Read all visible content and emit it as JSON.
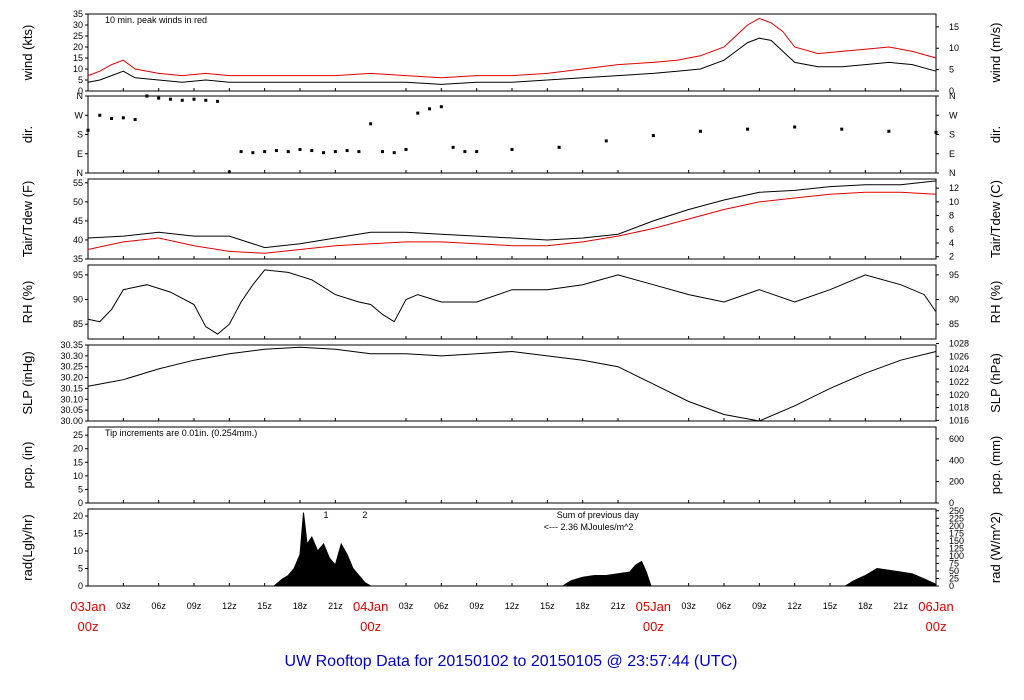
{
  "title": "UW Rooftop Data for 20150102  to  20150105 @ 23:57:44  (UTC)",
  "colors": {
    "red": "#e00000",
    "blue": "#0000cc",
    "purple": "#9900cc",
    "black": "#000000"
  },
  "x_axis": {
    "range_hours": [
      0,
      72
    ],
    "major": [
      {
        "hour": 0,
        "line1": "03Jan",
        "line2": "00z"
      },
      {
        "hour": 24,
        "line1": "04Jan",
        "line2": "00z"
      },
      {
        "hour": 48,
        "line1": "05Jan",
        "line2": "00z"
      },
      {
        "hour": 72,
        "line1": "06Jan",
        "line2": "00z"
      }
    ],
    "minor_hours": [
      3,
      6,
      9,
      12,
      15,
      18,
      21,
      27,
      30,
      33,
      36,
      39,
      42,
      45,
      51,
      54,
      57,
      60,
      63,
      66,
      69
    ],
    "minor_labels": [
      "03z",
      "06z",
      "09z",
      "12z",
      "15z",
      "18z",
      "21z",
      "03z",
      "06z",
      "09z",
      "12z",
      "15z",
      "18z",
      "21z",
      "03z",
      "06z",
      "09z",
      "12z",
      "15z",
      "18z",
      "21z"
    ]
  },
  "chart_data": [
    {
      "type": "line",
      "ylabel": "wind (kts)",
      "ylabel_right": "wind (m/s)",
      "ylim": [
        0,
        35
      ],
      "yticks": [
        0,
        5,
        10,
        15,
        20,
        25,
        30,
        35
      ],
      "right_ticks": [
        {
          "label": "0",
          "at": 0
        },
        {
          "label": "5",
          "at": 9.72
        },
        {
          "label": "10",
          "at": 19.44
        },
        {
          "label": "15",
          "at": 29.16
        }
      ],
      "annotation": "10 min. peak winds in red",
      "series": [
        {
          "color": "#000000",
          "x": [
            0,
            1,
            2,
            3,
            4,
            6,
            8,
            10,
            12,
            15,
            18,
            21,
            24,
            27,
            30,
            33,
            36,
            39,
            42,
            45,
            48,
            50,
            52,
            54,
            55,
            56,
            57,
            58,
            59,
            60,
            62,
            64,
            66,
            68,
            70,
            72
          ],
          "y": [
            4,
            5,
            7,
            9,
            6,
            5,
            4,
            5,
            4,
            4,
            4,
            4,
            4,
            4,
            3,
            4,
            4,
            5,
            6,
            7,
            8,
            9,
            10,
            14,
            18,
            22,
            24,
            23,
            18,
            13,
            11,
            11,
            12,
            13,
            12,
            9
          ]
        },
        {
          "color": "#e00000",
          "x": [
            0,
            1,
            2,
            3,
            4,
            6,
            8,
            10,
            12,
            15,
            18,
            21,
            24,
            27,
            30,
            33,
            36,
            39,
            42,
            45,
            48,
            50,
            52,
            54,
            55,
            56,
            57,
            58,
            59,
            60,
            62,
            64,
            66,
            68,
            70,
            72
          ],
          "y": [
            7,
            9,
            12,
            14,
            10,
            8,
            7,
            8,
            7,
            7,
            7,
            7,
            8,
            7,
            6,
            7,
            7,
            8,
            10,
            12,
            13,
            14,
            16,
            20,
            25,
            30,
            33,
            31,
            27,
            20,
            17,
            18,
            19,
            20,
            18,
            15
          ]
        }
      ]
    },
    {
      "type": "scatter",
      "ylabel": "dir.",
      "ylabel_right": "dir.",
      "ylim": [
        0,
        360
      ],
      "yticks": [
        0,
        90,
        180,
        270,
        360
      ],
      "ytick_labels": [
        "N",
        "E",
        "S",
        "W",
        "N"
      ],
      "series": [
        {
          "color": "#000000",
          "x": [
            0,
            1,
            2,
            3,
            4,
            5,
            6,
            7,
            8,
            9,
            10,
            11,
            12,
            13,
            14,
            15,
            16,
            17,
            18,
            19,
            20,
            21,
            22,
            23,
            24,
            25,
            26,
            27,
            28,
            29,
            30,
            31,
            32,
            33,
            36,
            40,
            44,
            48,
            52,
            56,
            60,
            64,
            68,
            72
          ],
          "y": [
            200,
            270,
            255,
            258,
            250,
            360,
            350,
            345,
            340,
            345,
            340,
            335,
            5,
            100,
            95,
            100,
            105,
            100,
            110,
            105,
            95,
            100,
            105,
            100,
            230,
            100,
            95,
            110,
            280,
            300,
            310,
            120,
            100,
            100,
            110,
            120,
            150,
            175,
            195,
            205,
            215,
            205,
            195,
            190
          ]
        }
      ]
    },
    {
      "type": "line",
      "ylabel": "Tair/Tdew (F)",
      "ylabel_right": "Tair/Tdew (C)",
      "ylim": [
        35,
        56
      ],
      "yticks": [
        35,
        40,
        45,
        50,
        55
      ],
      "right_ticks": [
        {
          "label": "2",
          "at": 35.6
        },
        {
          "label": "4",
          "at": 39.2
        },
        {
          "label": "6",
          "at": 42.8
        },
        {
          "label": "8",
          "at": 46.4
        },
        {
          "label": "10",
          "at": 50
        },
        {
          "label": "12",
          "at": 53.6
        }
      ],
      "series": [
        {
          "color": "#000000",
          "x": [
            0,
            3,
            6,
            9,
            12,
            15,
            18,
            21,
            24,
            27,
            30,
            33,
            36,
            39,
            42,
            45,
            48,
            51,
            54,
            57,
            60,
            63,
            66,
            69,
            72
          ],
          "y": [
            40.5,
            41,
            42,
            41,
            41,
            38,
            39,
            40.5,
            42,
            42,
            41.5,
            41,
            40.5,
            40,
            40.5,
            41.5,
            45,
            48,
            50.5,
            52.5,
            53,
            54,
            54.5,
            54.5,
            55.5
          ]
        },
        {
          "color": "#e00000",
          "x": [
            0,
            3,
            6,
            9,
            12,
            15,
            18,
            21,
            24,
            27,
            30,
            33,
            36,
            39,
            42,
            45,
            48,
            51,
            54,
            57,
            60,
            63,
            66,
            69,
            72
          ],
          "y": [
            37.5,
            39.5,
            40.5,
            38.5,
            37,
            36.5,
            37.5,
            38.5,
            39,
            39.5,
            39.5,
            39,
            38.5,
            38.5,
            39.5,
            41,
            43,
            45.5,
            48,
            50,
            51,
            52,
            52.5,
            52.5,
            52
          ]
        }
      ]
    },
    {
      "type": "line",
      "ylabel": "RH (%)",
      "ylabel_right": "RH (%)",
      "ylim": [
        82,
        97
      ],
      "yticks": [
        85,
        90,
        95
      ],
      "right_ticks": [
        {
          "label": "85",
          "at": 85
        },
        {
          "label": "90",
          "at": 90
        },
        {
          "label": "95",
          "at": 95
        }
      ],
      "series": [
        {
          "color": "#000000",
          "x": [
            0,
            1,
            2,
            3,
            5,
            7,
            9,
            10,
            11,
            12,
            13,
            14,
            15,
            17,
            19,
            21,
            23,
            24,
            25,
            26,
            27,
            28,
            30,
            33,
            36,
            39,
            42,
            45,
            48,
            51,
            54,
            57,
            60,
            63,
            66,
            69,
            71,
            72
          ],
          "y": [
            86,
            85.5,
            88,
            92,
            93,
            91.5,
            89,
            84.5,
            83,
            85,
            89.5,
            93,
            96,
            95.5,
            94,
            91,
            89.5,
            89,
            87,
            85.5,
            90,
            91,
            89.5,
            89.5,
            92,
            92,
            93,
            95,
            93,
            91,
            89.5,
            92,
            89.5,
            92,
            95,
            93,
            91,
            87.5
          ]
        }
      ]
    },
    {
      "type": "line",
      "ylabel": "SLP (inHg)",
      "ylabel_right": "SLP (hPa)",
      "ylim": [
        30.0,
        30.35
      ],
      "yticks": [
        30.0,
        30.05,
        30.1,
        30.15,
        30.2,
        30.25,
        30.3,
        30.35
      ],
      "ytick_labels": [
        "30.00",
        "30.05",
        "30.10",
        "30.15",
        "30.20",
        "30.25",
        "30.30",
        "30.35"
      ],
      "right_ticks": [
        {
          "label": "1016",
          "at": 30.0027
        },
        {
          "label": "1018",
          "at": 30.0618
        },
        {
          "label": "1020",
          "at": 30.1208
        },
        {
          "label": "1022",
          "at": 30.1799
        },
        {
          "label": "1024",
          "at": 30.239
        },
        {
          "label": "1026",
          "at": 30.298
        },
        {
          "label": "1028",
          "at": 30.3571
        }
      ],
      "series": [
        {
          "color": "#000000",
          "x": [
            0,
            3,
            6,
            9,
            12,
            15,
            18,
            21,
            24,
            27,
            30,
            33,
            36,
            39,
            42,
            45,
            48,
            51,
            54,
            57,
            60,
            63,
            66,
            69,
            72
          ],
          "y": [
            30.16,
            30.19,
            30.24,
            30.28,
            30.31,
            30.33,
            30.34,
            30.33,
            30.31,
            30.31,
            30.3,
            30.31,
            30.32,
            30.3,
            30.28,
            30.25,
            30.17,
            30.09,
            30.03,
            30.0,
            30.07,
            30.15,
            30.22,
            30.28,
            30.32
          ]
        }
      ]
    },
    {
      "type": "line",
      "ylabel": "pcp. (in)",
      "ylabel_right": "pcp. (mm)",
      "ylim": [
        0,
        28
      ],
      "yticks": [
        0,
        5,
        10,
        15,
        20,
        25
      ],
      "right_ticks": [
        {
          "label": "0",
          "at": 0
        },
        {
          "label": "200",
          "at": 7.874
        },
        {
          "label": "400",
          "at": 15.748
        },
        {
          "label": "600",
          "at": 23.622
        }
      ],
      "annotation": "Tip increments are 0.01in. (0.254mm.)",
      "series": [
        {
          "color": "#000000",
          "x": [
            0,
            72
          ],
          "y": [
            0,
            0
          ]
        }
      ]
    },
    {
      "type": "area",
      "ylabel": "rad(Lgly/hr)",
      "ylabel_right": "rad (W/m^2)",
      "ylim": [
        0,
        22
      ],
      "yticks": [
        0,
        5,
        10,
        15,
        20
      ],
      "right_ticks": [
        {
          "label": "0",
          "at": 0
        },
        {
          "label": "25",
          "at": 2.15
        },
        {
          "label": "50",
          "at": 4.3
        },
        {
          "label": "75",
          "at": 6.45
        },
        {
          "label": "100",
          "at": 8.6
        },
        {
          "label": "125",
          "at": 10.75
        },
        {
          "label": "150",
          "at": 12.9
        },
        {
          "label": "175",
          "at": 15.05
        },
        {
          "label": "200",
          "at": 17.2
        },
        {
          "label": "225",
          "at": 19.35
        },
        {
          "label": "250",
          "at": 21.5
        }
      ],
      "annotations": [
        "1",
        "2",
        "Sum of previous day",
        "<--- 2.36 MJoules/m^2"
      ],
      "series": [
        {
          "color": "#000000",
          "x": [
            15.8,
            16.5,
            17,
            17.5,
            18,
            18.3,
            18.6,
            19,
            19.5,
            20,
            20.5,
            21,
            21.5,
            22,
            22.5,
            23,
            23.5,
            24
          ],
          "y": [
            0,
            2,
            3,
            5,
            9,
            21,
            12,
            14,
            10,
            12,
            8,
            6,
            12,
            9,
            5,
            3,
            1,
            0
          ]
        },
        {
          "color": "#000000",
          "x": [
            40.3,
            41,
            42,
            43,
            44,
            45,
            46,
            46.5,
            47,
            47.4,
            47.8
          ],
          "y": [
            0,
            1.5,
            2.5,
            3,
            3,
            3.5,
            4,
            6,
            7,
            4,
            0
          ]
        },
        {
          "color": "#000000",
          "x": [
            64.3,
            65,
            66,
            67,
            68,
            69,
            70,
            71,
            72
          ],
          "y": [
            0,
            1.5,
            3,
            5,
            4.5,
            4,
            3.5,
            2,
            0.5
          ]
        }
      ]
    }
  ]
}
